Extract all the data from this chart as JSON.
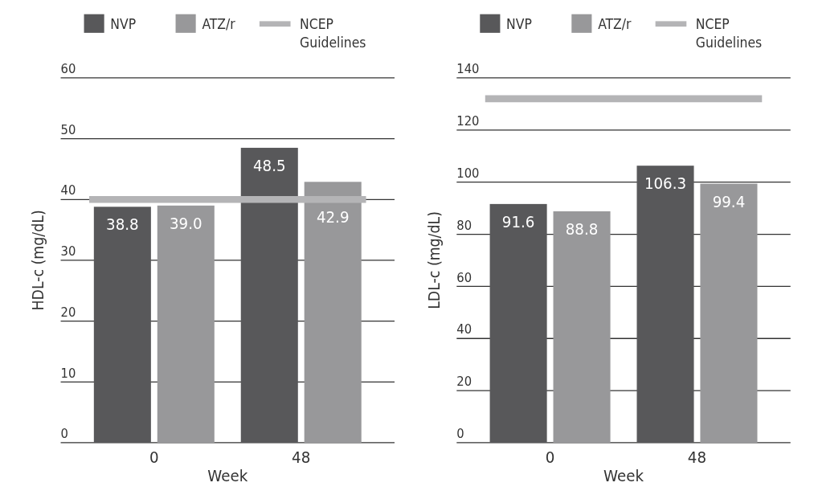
{
  "chart_data": [
    {
      "type": "bar",
      "xlabel": "Week",
      "ylabel": "HDL-c (mg/dL)",
      "categories": [
        "0",
        "48"
      ],
      "series": [
        {
          "name": "NVP",
          "color": "#58585a",
          "values": [
            38.8,
            48.5
          ]
        },
        {
          "name": "ATZ/r",
          "color": "#98989a",
          "values": [
            39.0,
            42.9
          ],
          "value_labels": [
            "39.0",
            "42.9"
          ]
        }
      ],
      "ylim": [
        0,
        60
      ],
      "yticks": [
        0,
        10,
        20,
        30,
        40,
        50,
        60
      ],
      "grid": "y",
      "legend": "top",
      "data_labels": true,
      "ref_lines": [
        {
          "axis": "y",
          "value": 40,
          "label": "NCEP Guidelines",
          "color": "#b4b4b6"
        }
      ]
    },
    {
      "type": "bar",
      "xlabel": "Week",
      "ylabel": "LDL-c (mg/dL)",
      "categories": [
        "0",
        "48"
      ],
      "series": [
        {
          "name": "NVP",
          "color": "#58585a",
          "values": [
            91.6,
            106.3
          ]
        },
        {
          "name": "ATZ/r",
          "color": "#98989a",
          "values": [
            88.8,
            99.4
          ]
        }
      ],
      "ylim": [
        0,
        140
      ],
      "yticks": [
        0,
        20,
        40,
        60,
        80,
        100,
        120,
        140
      ],
      "grid": "y",
      "legend": "top",
      "data_labels": true,
      "ref_lines": [
        {
          "axis": "y",
          "value": 132,
          "label": "NCEP Guidelines",
          "color": "#b4b4b6"
        }
      ]
    }
  ]
}
